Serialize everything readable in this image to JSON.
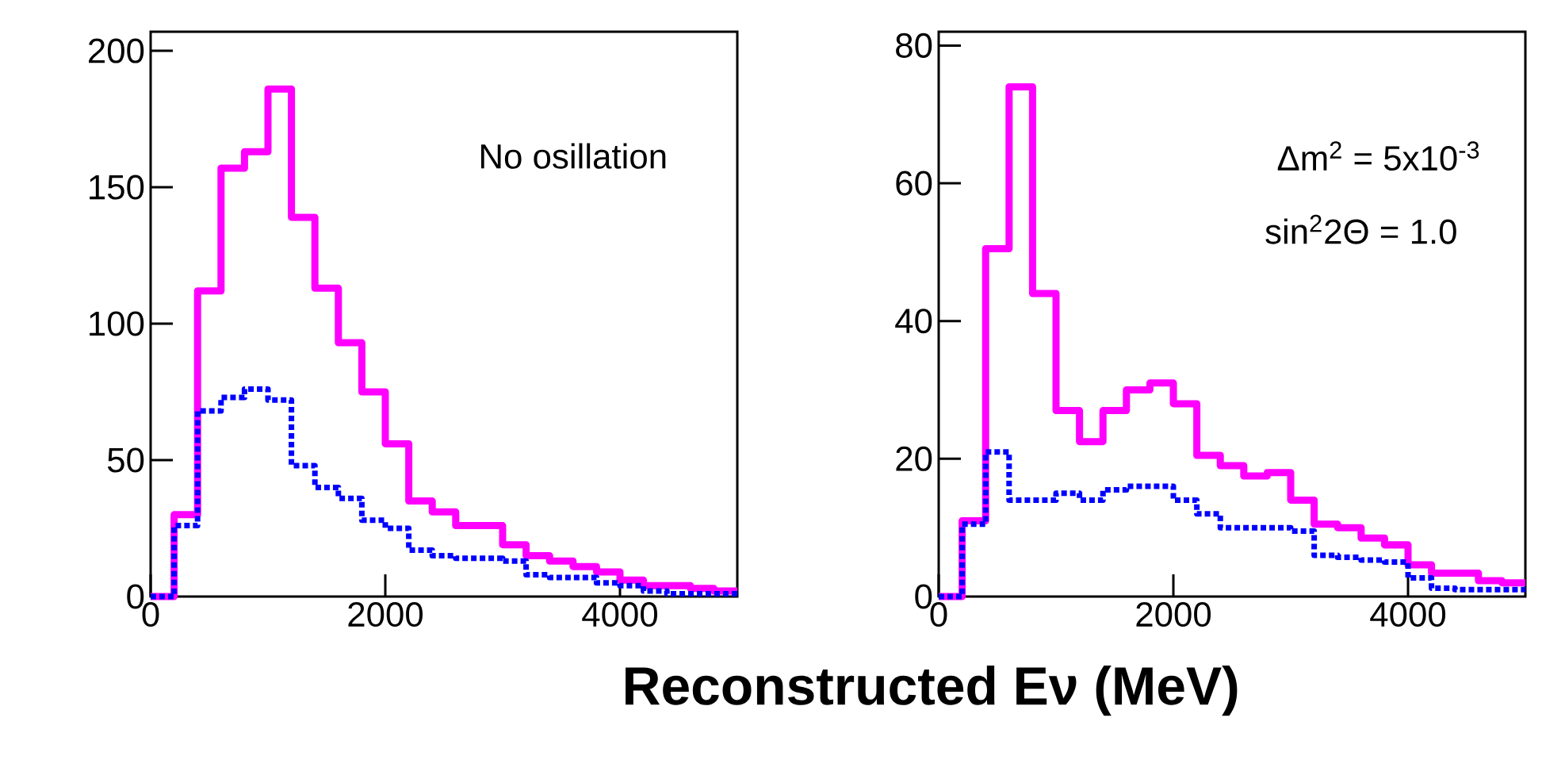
{
  "chart_data": [
    {
      "type": "histogram",
      "xlabel": "Reconstructed Eν (MeV)",
      "bins": [
        0,
        200,
        400,
        600,
        800,
        1000,
        1200,
        1400,
        1600,
        1800,
        2000,
        2200,
        2400,
        2600,
        2800,
        3000,
        3200,
        3400,
        3600,
        3800,
        4000,
        4200,
        4400,
        4600,
        4800,
        5000
      ],
      "series": [
        {
          "color": "#ff00ff",
          "line_style": "solid",
          "values": [
            0,
            30,
            112,
            157,
            163,
            186,
            139,
            113,
            93,
            75,
            56,
            35,
            31,
            26,
            26,
            19,
            15,
            13,
            11,
            9,
            6,
            4,
            4,
            3,
            2
          ]
        },
        {
          "color": "#0000ff",
          "line_style": "dotted",
          "values": [
            0,
            26,
            68,
            73,
            76,
            72,
            48,
            40,
            36,
            28,
            25,
            17,
            15,
            14,
            14,
            13,
            8,
            7,
            7,
            5,
            4,
            2,
            1,
            1,
            1
          ]
        }
      ],
      "xlim": [
        0,
        5000
      ],
      "ylim": [
        0,
        207
      ],
      "xticks": [
        0,
        2000,
        4000
      ],
      "yticks": [
        0,
        50,
        100,
        150,
        200
      ],
      "annotations": [
        "No osillation"
      ]
    },
    {
      "type": "histogram",
      "bins": [
        0,
        200,
        400,
        600,
        800,
        1000,
        1200,
        1400,
        1600,
        1800,
        2000,
        2200,
        2400,
        2600,
        2800,
        3000,
        3200,
        3400,
        3600,
        3800,
        4000,
        4200,
        4400,
        4600,
        4800,
        5000
      ],
      "series": [
        {
          "color": "#ff00ff",
          "line_style": "solid",
          "values": [
            0,
            11,
            50.5,
            74,
            44,
            27,
            22.5,
            27,
            30,
            31,
            28,
            20.5,
            19,
            17.5,
            18,
            14,
            10.5,
            10,
            8.5,
            7.5,
            4.6,
            3.4,
            3.4,
            2.3,
            2
          ]
        },
        {
          "color": "#0000ff",
          "line_style": "dotted",
          "values": [
            0,
            10.5,
            21,
            14,
            14,
            15,
            14,
            15.5,
            16,
            16,
            14,
            12,
            10,
            10,
            10,
            9.5,
            6,
            5.7,
            5.3,
            5,
            2.7,
            1.2,
            1,
            1,
            1
          ]
        }
      ],
      "xlim": [
        0,
        5000
      ],
      "ylim": [
        0,
        82
      ],
      "xticks": [
        0,
        2000,
        4000
      ],
      "yticks": [
        0,
        20,
        40,
        60,
        80
      ],
      "annotations": [
        "Δm$^{2}$ = 5x10$^{-3}$",
        "sin$^{2}$2Θ = 1.0"
      ]
    }
  ]
}
